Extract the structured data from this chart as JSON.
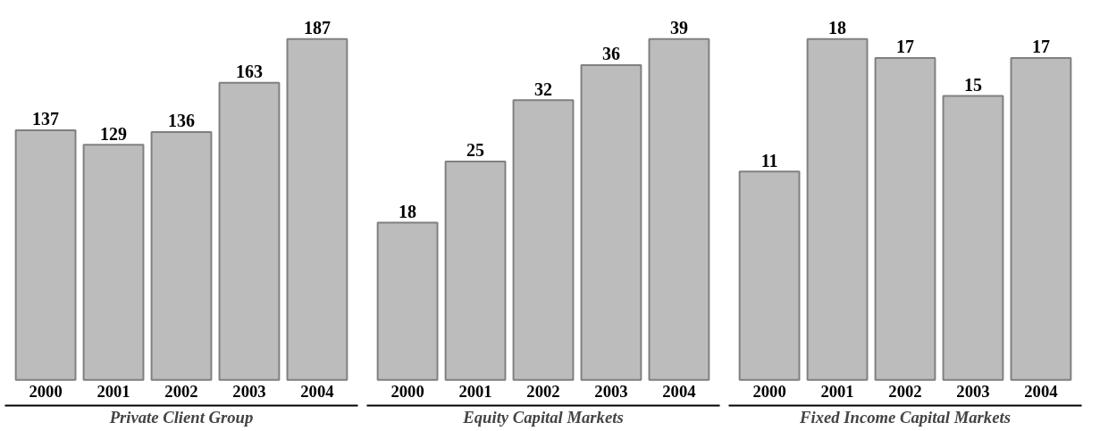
{
  "chart_data": [
    {
      "type": "bar",
      "xlabel": "Private Client Group",
      "categories": [
        "2000",
        "2001",
        "2002",
        "2003",
        "2004"
      ],
      "values": [
        137,
        129,
        136,
        163,
        187
      ],
      "color": "#bcbcbc",
      "data_labels": true
    },
    {
      "type": "bar",
      "xlabel": "Equity Capital Markets",
      "categories": [
        "2000",
        "2001",
        "2002",
        "2003",
        "2004"
      ],
      "values": [
        18,
        25,
        32,
        36,
        39
      ],
      "color": "#bcbcbc",
      "data_labels": true
    },
    {
      "type": "bar",
      "xlabel": "Fixed Income Capital Markets",
      "categories": [
        "2000",
        "2001",
        "2002",
        "2003",
        "2004"
      ],
      "values": [
        11,
        18,
        17,
        15,
        17
      ],
      "color": "#bcbcbc",
      "data_labels": true
    }
  ]
}
